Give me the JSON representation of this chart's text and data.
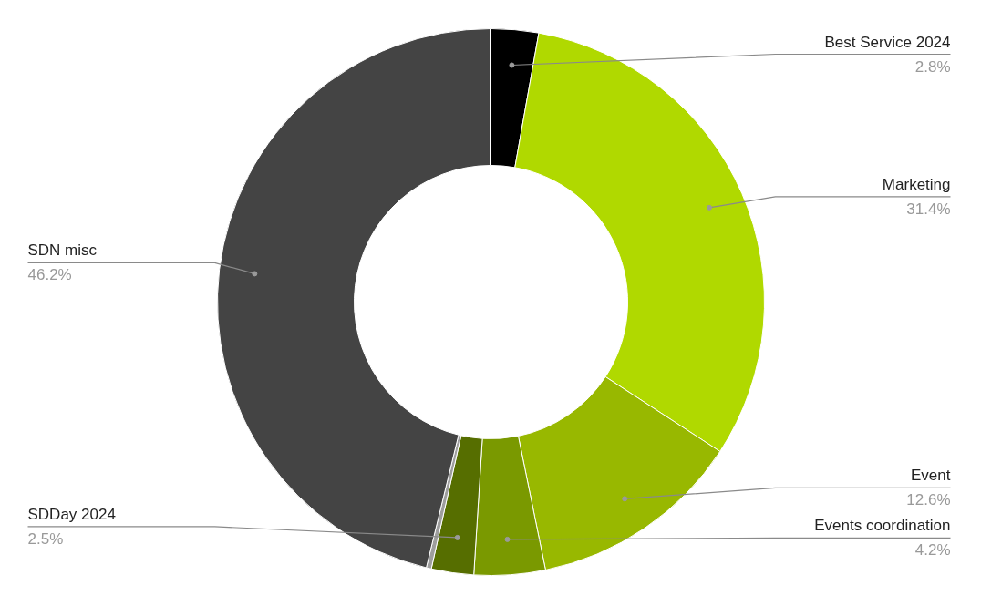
{
  "chart_data": {
    "type": "donut",
    "categories": [
      "Best Service 2024",
      "Marketing",
      "Event",
      "Events coordination",
      "SDDay 2024",
      null,
      "SDN misc"
    ],
    "values": [
      2.8,
      31.4,
      12.6,
      4.2,
      2.5,
      0.3,
      46.2
    ],
    "value_labels": [
      "2.8%",
      "31.4%",
      "12.6%",
      "4.2%",
      "2.5%",
      null,
      "46.2%"
    ],
    "colors": [
      "#000000",
      "#b0d900",
      "#98b800",
      "#7a9900",
      "#566e00",
      "#9e9e9e",
      "#444444"
    ]
  }
}
